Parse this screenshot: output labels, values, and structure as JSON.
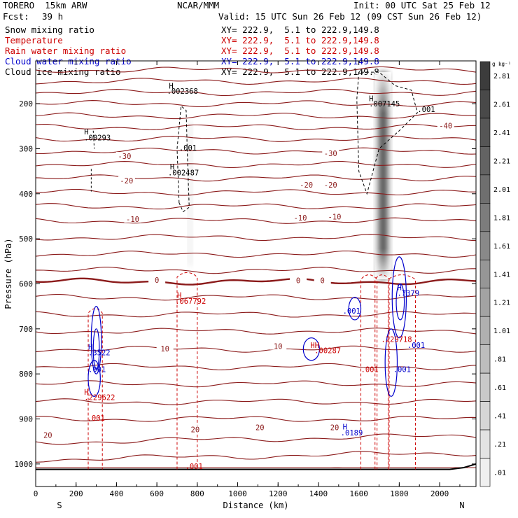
{
  "header": {
    "model": "TORERO  15km ARW",
    "org": "NCAR/MMM",
    "init": "Init: 00 UTC Sat 25 Feb 12",
    "fcst_label": "Fcst:",
    "fcst_value": "39 h",
    "valid": "Valid: 15 UTC Sun 26 Feb 12 (09 CST Sun 26 Feb 12)"
  },
  "legend": [
    {
      "name": "Snow mixing ratio",
      "xy": "XY= 222.9,  5.1 to 222.9,149.8",
      "color": "#000000"
    },
    {
      "name": "Temperature",
      "xy": "XY= 222.9,  5.1 to 222.9,149.8",
      "color": "#cc0000"
    },
    {
      "name": "Rain water mixing ratio",
      "xy": "XY= 222.9,  5.1 to 222.9,149.8",
      "color": "#cc0000"
    },
    {
      "name": "Cloud water mixing ratio",
      "xy": "XY= 222.9,  5.1 to 222.9,149.8",
      "color": "#0000cc"
    },
    {
      "name": "Cloud ice mixing ratio",
      "xy": "XY= 222.9,  5.1 to 222.9,149.8",
      "color": "#000000"
    }
  ],
  "chart_data": {
    "type": "cross-section contour",
    "xlabel": "Distance (km)",
    "ylabel": "Pressure (hPa)",
    "x_range": [
      0,
      2180
    ],
    "y_range": [
      1050,
      100
    ],
    "x_ticks": [
      0,
      200,
      400,
      600,
      800,
      1000,
      1200,
      1400,
      1600,
      1800,
      2000
    ],
    "y_ticks": [
      200,
      300,
      400,
      500,
      600,
      700,
      800,
      900,
      1000
    ],
    "end_labels": {
      "left": "S",
      "right": "N"
    },
    "colorbar": {
      "unit": "g kg⁻¹",
      "labels": [
        "2.81",
        "2.61",
        "2.41",
        "2.21",
        "2.01",
        "1.81",
        "1.61",
        "1.41",
        "1.21",
        "1.01",
        ".81",
        ".61",
        ".41",
        ".21",
        ".01"
      ]
    },
    "temperature_labels": [
      {
        "text": "-40",
        "x": 2030,
        "p": 250
      },
      {
        "text": "-30",
        "x": 440,
        "p": 318
      },
      {
        "text": "-30",
        "x": 1460,
        "p": 312
      },
      {
        "text": "-20",
        "x": 450,
        "p": 372
      },
      {
        "text": "-20",
        "x": 1340,
        "p": 382
      },
      {
        "text": "-20",
        "x": 1460,
        "p": 382
      },
      {
        "text": "-10",
        "x": 480,
        "p": 458
      },
      {
        "text": "-10",
        "x": 1310,
        "p": 455
      },
      {
        "text": "-10",
        "x": 1480,
        "p": 452
      },
      {
        "text": "0",
        "x": 600,
        "p": 593
      },
      {
        "text": "0",
        "x": 1300,
        "p": 594
      },
      {
        "text": "0",
        "x": 1420,
        "p": 594
      },
      {
        "text": "10",
        "x": 640,
        "p": 745
      },
      {
        "text": "10",
        "x": 1200,
        "p": 740
      },
      {
        "text": "20",
        "x": 60,
        "p": 937
      },
      {
        "text": "20",
        "x": 790,
        "p": 925
      },
      {
        "text": "20",
        "x": 1110,
        "p": 920
      },
      {
        "text": "20",
        "x": 1480,
        "p": 920
      }
    ],
    "annotations": [
      {
        "text": "H",
        "x": 660,
        "p": 160,
        "color": "#000000"
      },
      {
        "text": ".002368",
        "x": 650,
        "p": 172,
        "color": "#000000"
      },
      {
        "text": "H",
        "x": 1650,
        "p": 188,
        "color": "#000000"
      },
      {
        "text": ".007145",
        "x": 1650,
        "p": 200,
        "color": "#000000"
      },
      {
        "text": ".001",
        "x": 1890,
        "p": 212,
        "color": "#000000"
      },
      {
        "text": "H",
        "x": 240,
        "p": 262,
        "color": "#000000"
      },
      {
        "text": ".00293",
        "x": 240,
        "p": 275,
        "color": "#000000"
      },
      {
        "text": ".001",
        "x": 710,
        "p": 298,
        "color": "#000000"
      },
      {
        "text": "H",
        "x": 665,
        "p": 340,
        "color": "#000000"
      },
      {
        "text": ".002487",
        "x": 655,
        "p": 353,
        "color": "#000000"
      },
      {
        "text": "H",
        "x": 700,
        "p": 625,
        "color": "#cc0000"
      },
      {
        "text": ".067792",
        "x": 690,
        "p": 638,
        "color": "#cc0000"
      },
      {
        "text": ".001",
        "x": 1520,
        "p": 660,
        "color": "#0000cc"
      },
      {
        "text": "H",
        "x": 1790,
        "p": 608,
        "color": "#0000cc"
      },
      {
        "text": ".7379",
        "x": 1790,
        "p": 620,
        "color": "#0000cc"
      },
      {
        "text": ".229718",
        "x": 1710,
        "p": 723,
        "color": "#cc0000"
      },
      {
        "text": "HH",
        "x": 1360,
        "p": 736,
        "color": "#cc0000"
      },
      {
        "text": ".00287",
        "x": 1380,
        "p": 748,
        "color": "#cc0000"
      },
      {
        "text": ".001",
        "x": 1840,
        "p": 736,
        "color": "#0000cc"
      },
      {
        "text": "H",
        "x": 260,
        "p": 740,
        "color": "#0000cc"
      },
      {
        "text": ".3522",
        "x": 260,
        "p": 752,
        "color": "#0000cc"
      },
      {
        "text": ".001",
        "x": 1610,
        "p": 790,
        "color": "#cc0000"
      },
      {
        "text": ".001",
        "x": 1770,
        "p": 790,
        "color": "#0000cc"
      },
      {
        "text": ".001",
        "x": 260,
        "p": 790,
        "color": "#0000cc"
      },
      {
        "text": "H",
        "x": 240,
        "p": 840,
        "color": "#cc0000"
      },
      {
        "text": ".229622",
        "x": 240,
        "p": 852,
        "color": "#cc0000"
      },
      {
        "text": ".001",
        "x": 255,
        "p": 898,
        "color": "#cc0000"
      },
      {
        "text": "H",
        "x": 1520,
        "p": 917,
        "color": "#0000cc"
      },
      {
        "text": ".0189",
        "x": 1510,
        "p": 930,
        "color": "#0000cc"
      },
      {
        "text": ".001",
        "x": 740,
        "p": 1005,
        "color": "#cc0000"
      }
    ]
  }
}
